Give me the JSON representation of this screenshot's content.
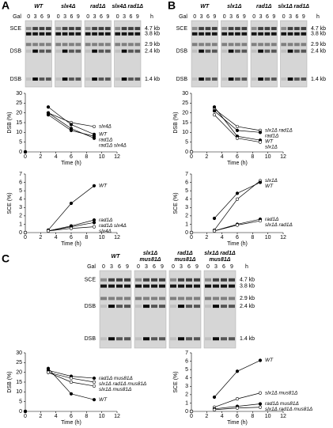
{
  "figure": {
    "panels": [
      {
        "label": "A",
        "gel": {
          "lanes": [
            [
              "WT"
            ],
            [
              "slx4Δ"
            ],
            [
              "rad1Δ"
            ],
            [
              "slx4Δ rad1Δ"
            ]
          ],
          "gal": "Gal",
          "times": [
            "0",
            "3",
            "6",
            "9"
          ],
          "unit": "h",
          "left": [
            "SCE",
            "DSB",
            "DSB"
          ],
          "right": [
            "4.7 kb",
            "3.8 kb",
            "2.9 kb",
            "2.4 kb",
            "1.4 kb"
          ]
        }
      },
      {
        "label": "B",
        "gel": {
          "lanes": [
            [
              "WT"
            ],
            [
              "slx1Δ"
            ],
            [
              "rad1Δ"
            ],
            [
              "slx1Δ rad1Δ"
            ]
          ],
          "gal": "Gal",
          "times": [
            "0",
            "3",
            "6",
            "9"
          ],
          "unit": "h",
          "left": [
            "SCE",
            "DSB",
            "DSB"
          ],
          "right": [
            "4.7 kb",
            "3.8 kb",
            "2.9 kb",
            "2.4 kb",
            "1.4 kb"
          ]
        }
      },
      {
        "label": "C",
        "gel": {
          "lanes": [
            [
              "WT"
            ],
            [
              "slx1Δ",
              "mus81Δ"
            ],
            [
              "rad1Δ",
              "mus81Δ"
            ],
            [
              "slx1Δ rad1Δ",
              "mus81Δ"
            ]
          ],
          "gal": "Gal",
          "times": [
            "0",
            "3",
            "6",
            "9"
          ],
          "unit": "h",
          "left": [
            "SCE",
            "DSB",
            "DSB"
          ],
          "right": [
            "4.7 kb",
            "3.8 kb",
            "2.9 kb",
            "2.4 kb",
            "1.4 kb"
          ]
        }
      }
    ]
  },
  "chart_data": [
    {
      "type": "line",
      "x_label": "Time (h)",
      "y_label": "DSB (%)",
      "x": [
        0,
        3,
        6,
        9
      ],
      "xlim": [
        0,
        12
      ],
      "xticks": [
        0,
        2,
        4,
        6,
        8,
        10,
        12
      ],
      "ylim": [
        0,
        30
      ],
      "yticks": [
        0,
        5,
        10,
        15,
        20,
        25,
        30
      ],
      "series": [
        {
          "name": "slx4Δ",
          "color": "#000000",
          "marker": "open",
          "values": [
            0,
            20,
            15,
            13
          ]
        },
        {
          "name": "WT",
          "color": "#000000",
          "marker": "filled",
          "values": [
            0,
            23,
            14,
            9
          ]
        },
        {
          "name": "rad1Δ",
          "color": "#000000",
          "marker": "filled",
          "values": [
            0,
            19,
            11,
            8
          ]
        },
        {
          "name": "rad1Δ slx4Δ",
          "color": "#000000",
          "marker": "filled",
          "values": [
            0,
            20,
            12,
            7
          ]
        }
      ]
    },
    {
      "type": "line",
      "x_label": "Time (h)",
      "y_label": "SCE (%)",
      "x": [
        0,
        3,
        6,
        9
      ],
      "xlim": [
        0,
        12
      ],
      "xticks": [
        0,
        2,
        4,
        6,
        8,
        10,
        12
      ],
      "ylim": [
        0,
        7
      ],
      "yticks": [
        0,
        1,
        2,
        3,
        4,
        5,
        6,
        7
      ],
      "series": [
        {
          "name": "WT",
          "color": "#000000",
          "marker": "filled",
          "values": [
            0,
            0.3,
            3.5,
            5.6
          ]
        },
        {
          "name": "rad1Δ",
          "color": "#000000",
          "marker": "filled",
          "values": [
            0,
            0.2,
            0.8,
            1.5
          ]
        },
        {
          "name": "rad1Δ slx4Δ",
          "color": "#000000",
          "marker": "filled",
          "values": [
            0,
            0.2,
            0.7,
            1.2
          ]
        },
        {
          "name": "slx4Δ",
          "color": "#000000",
          "marker": "open",
          "values": [
            0,
            0.2,
            0.5,
            0.7
          ]
        }
      ]
    },
    {
      "type": "line",
      "x_label": "Time (h)",
      "y_label": "DSB (%)",
      "x": [
        0,
        3,
        6,
        9
      ],
      "xlim": [
        0,
        12
      ],
      "xticks": [
        0,
        2,
        4,
        6,
        8,
        10,
        12
      ],
      "ylim": [
        0,
        30
      ],
      "yticks": [
        0,
        5,
        10,
        15,
        20,
        25,
        30
      ],
      "series": [
        {
          "name": "slx1Δ rad1Δ",
          "color": "#000000",
          "marker": "open",
          "values": [
            0,
            22,
            13,
            11
          ]
        },
        {
          "name": "rad1Δ",
          "color": "#000000",
          "marker": "filled",
          "values": [
            0,
            21,
            11,
            10
          ]
        },
        {
          "name": "WT",
          "color": "#000000",
          "marker": "filled",
          "values": [
            0,
            23,
            8,
            6
          ]
        },
        {
          "name": "slx1Δ",
          "color": "#000000",
          "marker": "open",
          "values": [
            0,
            19,
            7,
            5
          ]
        }
      ]
    },
    {
      "type": "line",
      "x_label": "Time (h)",
      "y_label": "SCE (%)",
      "x": [
        0,
        3,
        6,
        9
      ],
      "xlim": [
        0,
        12
      ],
      "xticks": [
        0,
        2,
        4,
        6,
        8,
        10,
        12
      ],
      "ylim": [
        0,
        7
      ],
      "yticks": [
        0,
        1,
        2,
        3,
        4,
        5,
        6,
        7
      ],
      "series": [
        {
          "name": "slx1Δ",
          "color": "#000000",
          "marker": "open",
          "values": [
            0,
            0.3,
            4,
            6.2
          ]
        },
        {
          "name": "WT",
          "color": "#000000",
          "marker": "filled",
          "values": [
            0,
            1.7,
            4.7,
            6
          ]
        },
        {
          "name": "rad1Δ",
          "color": "#000000",
          "marker": "filled",
          "values": [
            0,
            0.2,
            1,
            1.6
          ]
        },
        {
          "name": "slx1Δ rad1Δ",
          "color": "#000000",
          "marker": "open",
          "values": [
            0,
            0.2,
            0.9,
            1.4
          ]
        }
      ]
    },
    {
      "type": "line",
      "x_label": "Time (h)",
      "y_label": "DSB (%)",
      "x": [
        0,
        3,
        6,
        9
      ],
      "xlim": [
        0,
        12
      ],
      "xticks": [
        0,
        2,
        4,
        6,
        8,
        10,
        12
      ],
      "ylim": [
        0,
        30
      ],
      "yticks": [
        0,
        5,
        10,
        15,
        20,
        25,
        30
      ],
      "series": [
        {
          "name": "rad1Δ mus81Δ",
          "color": "#000000",
          "marker": "filled",
          "values": [
            0,
            21,
            18,
            17
          ]
        },
        {
          "name": "slx1Δ rad1Δ mus81Δ",
          "color": "#000000",
          "marker": "open",
          "values": [
            0,
            20,
            17,
            15
          ]
        },
        {
          "name": "slx1Δ mus81Δ",
          "color": "#000000",
          "marker": "open",
          "values": [
            0,
            20,
            15,
            13
          ]
        },
        {
          "name": "WT",
          "color": "#000000",
          "marker": "filled",
          "values": [
            0,
            22,
            9,
            6
          ]
        }
      ]
    },
    {
      "type": "line",
      "x_label": "Time (h)",
      "y_label": "SCE (%)",
      "x": [
        0,
        3,
        6,
        9
      ],
      "xlim": [
        0,
        12
      ],
      "xticks": [
        0,
        2,
        4,
        6,
        8,
        10,
        12
      ],
      "ylim": [
        0,
        7
      ],
      "yticks": [
        0,
        1,
        2,
        3,
        4,
        5,
        6,
        7
      ],
      "series": [
        {
          "name": "WT",
          "color": "#000000",
          "marker": "filled",
          "values": [
            0,
            1.7,
            4.8,
            6.1
          ]
        },
        {
          "name": "slx1Δ mus81Δ",
          "color": "#000000",
          "marker": "open",
          "values": [
            0,
            0.5,
            1.5,
            2.2
          ]
        },
        {
          "name": "rad1Δ mus81Δ",
          "color": "#000000",
          "marker": "filled",
          "values": [
            0,
            0.3,
            0.6,
            0.9
          ]
        },
        {
          "name": "slx1Δ rad1Δ mus81Δ",
          "color": "#000000",
          "marker": "open",
          "values": [
            0,
            0.2,
            0.4,
            0.5
          ]
        }
      ]
    }
  ]
}
